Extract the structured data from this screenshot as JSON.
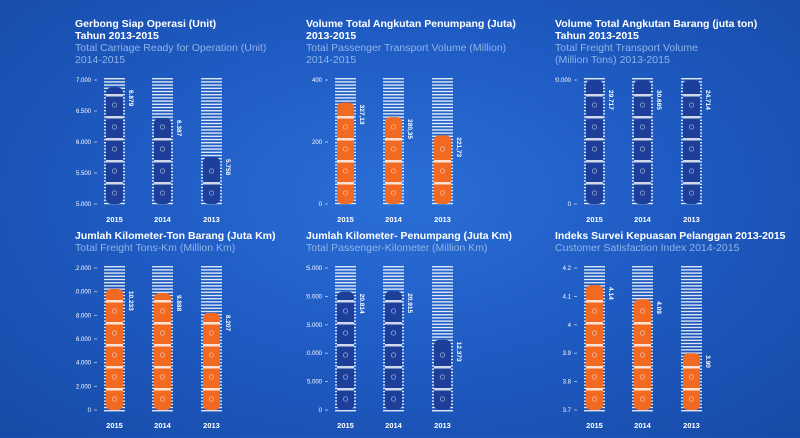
{
  "colors": {
    "background": "#1f5cc4",
    "navy": "#1e3f99",
    "orange": "#f26a21",
    "stripe": "#ffffff"
  },
  "panels": [
    {
      "title": [
        "Gerbong Siap Operasi (Unit)",
        "Tahun 2013-2015",
        "Total Carriage Ready for Operation (Unit)",
        "2014-2015"
      ]
    },
    {
      "title": [
        "Volume Total Angkutan Penumpang (Juta)",
        "2013-2015",
        "Total Passenger Transport Volume (Million)",
        "2014-2015"
      ]
    },
    {
      "title": [
        "Volume Total Angkutan Barang (juta ton)",
        "Tahun 2013-2015",
        "Total Freight Transport Volume",
        "(Million Tons) 2013-2015"
      ]
    },
    {
      "title": [
        "Jumlah Kilometer-Ton Barang (Juta Km)",
        "Total Freight Tons-Km (Million Km)",
        "",
        ""
      ]
    },
    {
      "title": [
        "Jumlah Kilometer- Penumpang (Juta Km)",
        "Total Passenger-Kilometer (Million Km)",
        "",
        ""
      ]
    },
    {
      "title": [
        "Indeks Survei Kepuasan Pelanggan 2013-2015",
        "Customer Satisfaction Index 2014-2015",
        "",
        ""
      ]
    }
  ],
  "chart_data": [
    {
      "type": "bar",
      "categories": [
        "2015",
        "2014",
        "2013"
      ],
      "values": [
        6879,
        6387,
        5758
      ],
      "labels": [
        "6.879",
        "6.387",
        "5.758"
      ],
      "yticks": [
        "5.000",
        "5.500",
        "6.000",
        "6.500",
        "7.000"
      ],
      "ylim": [
        5000,
        7000
      ],
      "color": "navy",
      "grid": true
    },
    {
      "type": "bar",
      "categories": [
        "2015",
        "2014",
        "2013"
      ],
      "values": [
        327.13,
        280.35,
        221.73
      ],
      "labels": [
        "327,13",
        "280,35",
        "221,73"
      ],
      "yticks": [
        "0",
        "200",
        "400"
      ],
      "ylim": [
        0,
        400
      ],
      "color": "orange",
      "grid": true
    },
    {
      "type": "bar",
      "categories": [
        "2015",
        "2014",
        "2013"
      ],
      "values": [
        29717,
        30685,
        24714
      ],
      "labels": [
        "29.717",
        "30.685",
        "24.714"
      ],
      "yticks": [
        "0",
        "20.000"
      ],
      "ylim": [
        0,
        20000
      ],
      "color": "navy",
      "grid": true
    },
    {
      "type": "bar",
      "categories": [
        "2015",
        "2014",
        "2013"
      ],
      "values": [
        10233,
        9888,
        8207
      ],
      "labels": [
        "10.233",
        "9.888",
        "8.207"
      ],
      "yticks": [
        "0",
        "2.000",
        "4.000",
        "6.000",
        "8.000",
        "10.000",
        "12.000"
      ],
      "ylim": [
        0,
        12000
      ],
      "color": "orange",
      "grid": true
    },
    {
      "type": "bar",
      "categories": [
        "2015",
        "2014",
        "2013"
      ],
      "values": [
        20814,
        20915,
        12373
      ],
      "labels": [
        "20.814",
        "20.915",
        "12.373"
      ],
      "yticks": [
        "0",
        "5.000",
        "10.000",
        "15.000",
        "20.000",
        "25.000"
      ],
      "ylim": [
        0,
        25000
      ],
      "color": "navy",
      "grid": true
    },
    {
      "type": "bar",
      "categories": [
        "2015",
        "2014",
        "2013"
      ],
      "values": [
        4.14,
        4.09,
        3.9
      ],
      "labels": [
        "4.14",
        "4.09",
        "3.90"
      ],
      "yticks": [
        "3.7",
        "3.8",
        "3.9",
        "4",
        "4.1",
        "4.2"
      ],
      "ylim": [
        3.7,
        4.2
      ],
      "color": "orange",
      "grid": true
    }
  ]
}
